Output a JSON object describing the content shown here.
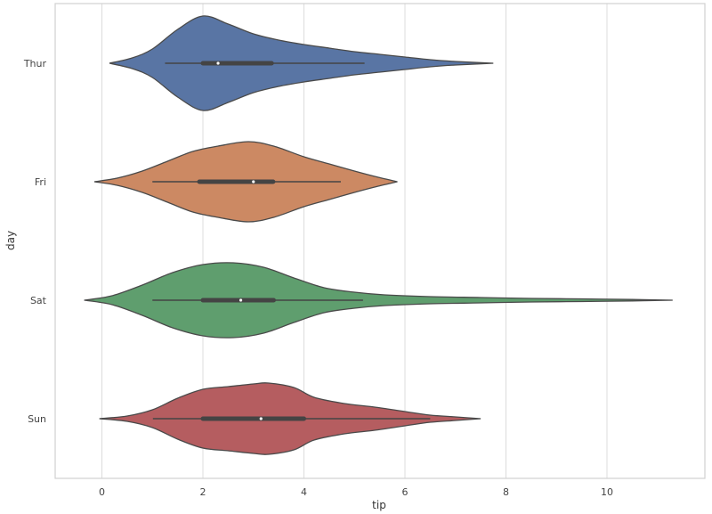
{
  "chart_data": {
    "type": "violin",
    "orientation": "horizontal",
    "title": "",
    "xlabel": "tip",
    "ylabel": "day",
    "xlim": [
      -0.9,
      12.0
    ],
    "x_ticks": [
      0,
      2,
      4,
      6,
      8,
      10
    ],
    "x_tick_labels": [
      "0",
      "2",
      "4",
      "6",
      "8",
      "10"
    ],
    "grid": "vertical",
    "categories": [
      "Thur",
      "Fri",
      "Sat",
      "Sun"
    ],
    "series": [
      {
        "name": "Thur",
        "color": "#5975a4",
        "violin_range": [
          0.15,
          7.75
        ],
        "whisker": [
          1.25,
          5.2
        ],
        "q1": 2.0,
        "median": 2.3,
        "q3": 3.36,
        "profile": [
          [
            0.15,
            0
          ],
          [
            0.6,
            6
          ],
          [
            1.0,
            16
          ],
          [
            1.5,
            38
          ],
          [
            2.0,
            53
          ],
          [
            2.5,
            44
          ],
          [
            3.0,
            33
          ],
          [
            3.5,
            26
          ],
          [
            4.0,
            21
          ],
          [
            4.5,
            17
          ],
          [
            5.0,
            13
          ],
          [
            5.5,
            10
          ],
          [
            6.0,
            7
          ],
          [
            6.5,
            4
          ],
          [
            7.0,
            2
          ],
          [
            7.75,
            0
          ]
        ]
      },
      {
        "name": "Fri",
        "color": "#cc8963",
        "violin_range": [
          -0.15,
          5.85
        ],
        "whisker": [
          1.0,
          4.73
        ],
        "q1": 1.93,
        "median": 3.0,
        "q3": 3.39,
        "profile": [
          [
            -0.15,
            0
          ],
          [
            0.3,
            4
          ],
          [
            0.8,
            12
          ],
          [
            1.3,
            23
          ],
          [
            1.8,
            34
          ],
          [
            2.3,
            40
          ],
          [
            2.9,
            45
          ],
          [
            3.4,
            40
          ],
          [
            4.0,
            28
          ],
          [
            4.5,
            20
          ],
          [
            5.0,
            12
          ],
          [
            5.4,
            6
          ],
          [
            5.85,
            0
          ]
        ]
      },
      {
        "name": "Sat",
        "color": "#5f9e6e",
        "violin_range": [
          -0.35,
          11.3
        ],
        "whisker": [
          1.0,
          5.17
        ],
        "q1": 2.0,
        "median": 2.75,
        "q3": 3.4,
        "profile": [
          [
            -0.35,
            0
          ],
          [
            0.2,
            5
          ],
          [
            0.8,
            17
          ],
          [
            1.4,
            31
          ],
          [
            2.0,
            40
          ],
          [
            2.6,
            42
          ],
          [
            3.2,
            37
          ],
          [
            3.8,
            25
          ],
          [
            4.4,
            14
          ],
          [
            5.0,
            9
          ],
          [
            5.6,
            6
          ],
          [
            6.5,
            4
          ],
          [
            7.5,
            3
          ],
          [
            8.5,
            2
          ],
          [
            9.5,
            1.5
          ],
          [
            10.5,
            0.8
          ],
          [
            11.3,
            0
          ]
        ]
      },
      {
        "name": "Sun",
        "color": "#b55d60",
        "violin_range": [
          -0.05,
          7.5
        ],
        "whisker": [
          1.01,
          6.5
        ],
        "q1": 2.0,
        "median": 3.15,
        "q3": 4.0,
        "profile": [
          [
            -0.05,
            0
          ],
          [
            0.5,
            3
          ],
          [
            1.0,
            10
          ],
          [
            1.5,
            23
          ],
          [
            2.0,
            33
          ],
          [
            2.5,
            36
          ],
          [
            3.0,
            39
          ],
          [
            3.3,
            40
          ],
          [
            3.8,
            35
          ],
          [
            4.2,
            24
          ],
          [
            4.8,
            17
          ],
          [
            5.4,
            13
          ],
          [
            6.0,
            8
          ],
          [
            6.5,
            4
          ],
          [
            7.0,
            2
          ],
          [
            7.5,
            0
          ]
        ]
      }
    ]
  }
}
